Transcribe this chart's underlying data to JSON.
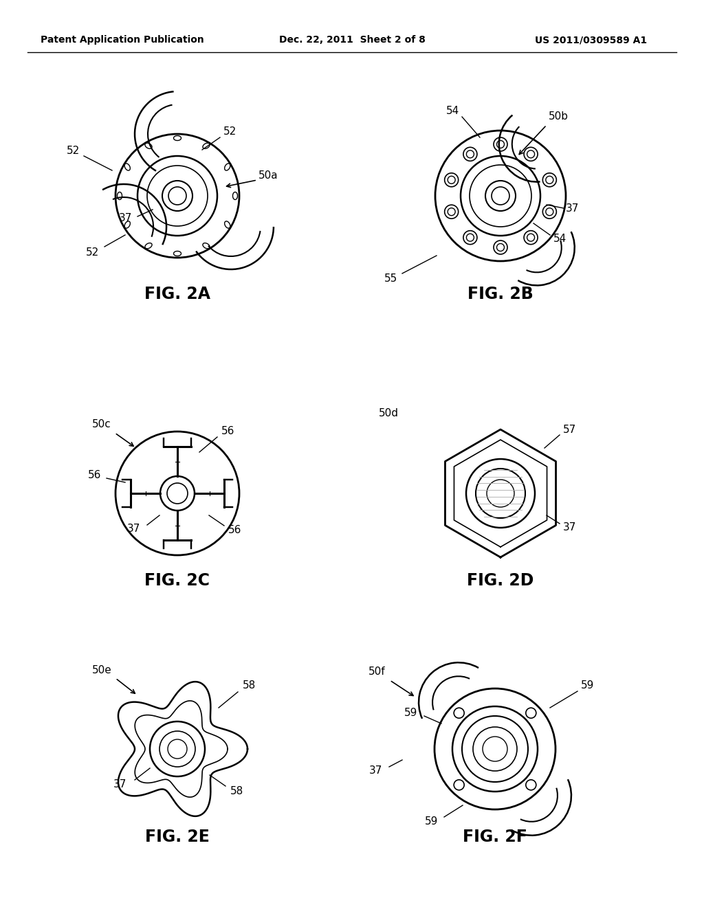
{
  "bg_color": "#ffffff",
  "line_color": "#000000",
  "header_left": "Patent Application Publication",
  "header_center": "Dec. 22, 2011  Sheet 2 of 8",
  "header_right": "US 2011/0309589 A1",
  "fig_width": 10.24,
  "fig_height": 13.2,
  "dpi": 100
}
